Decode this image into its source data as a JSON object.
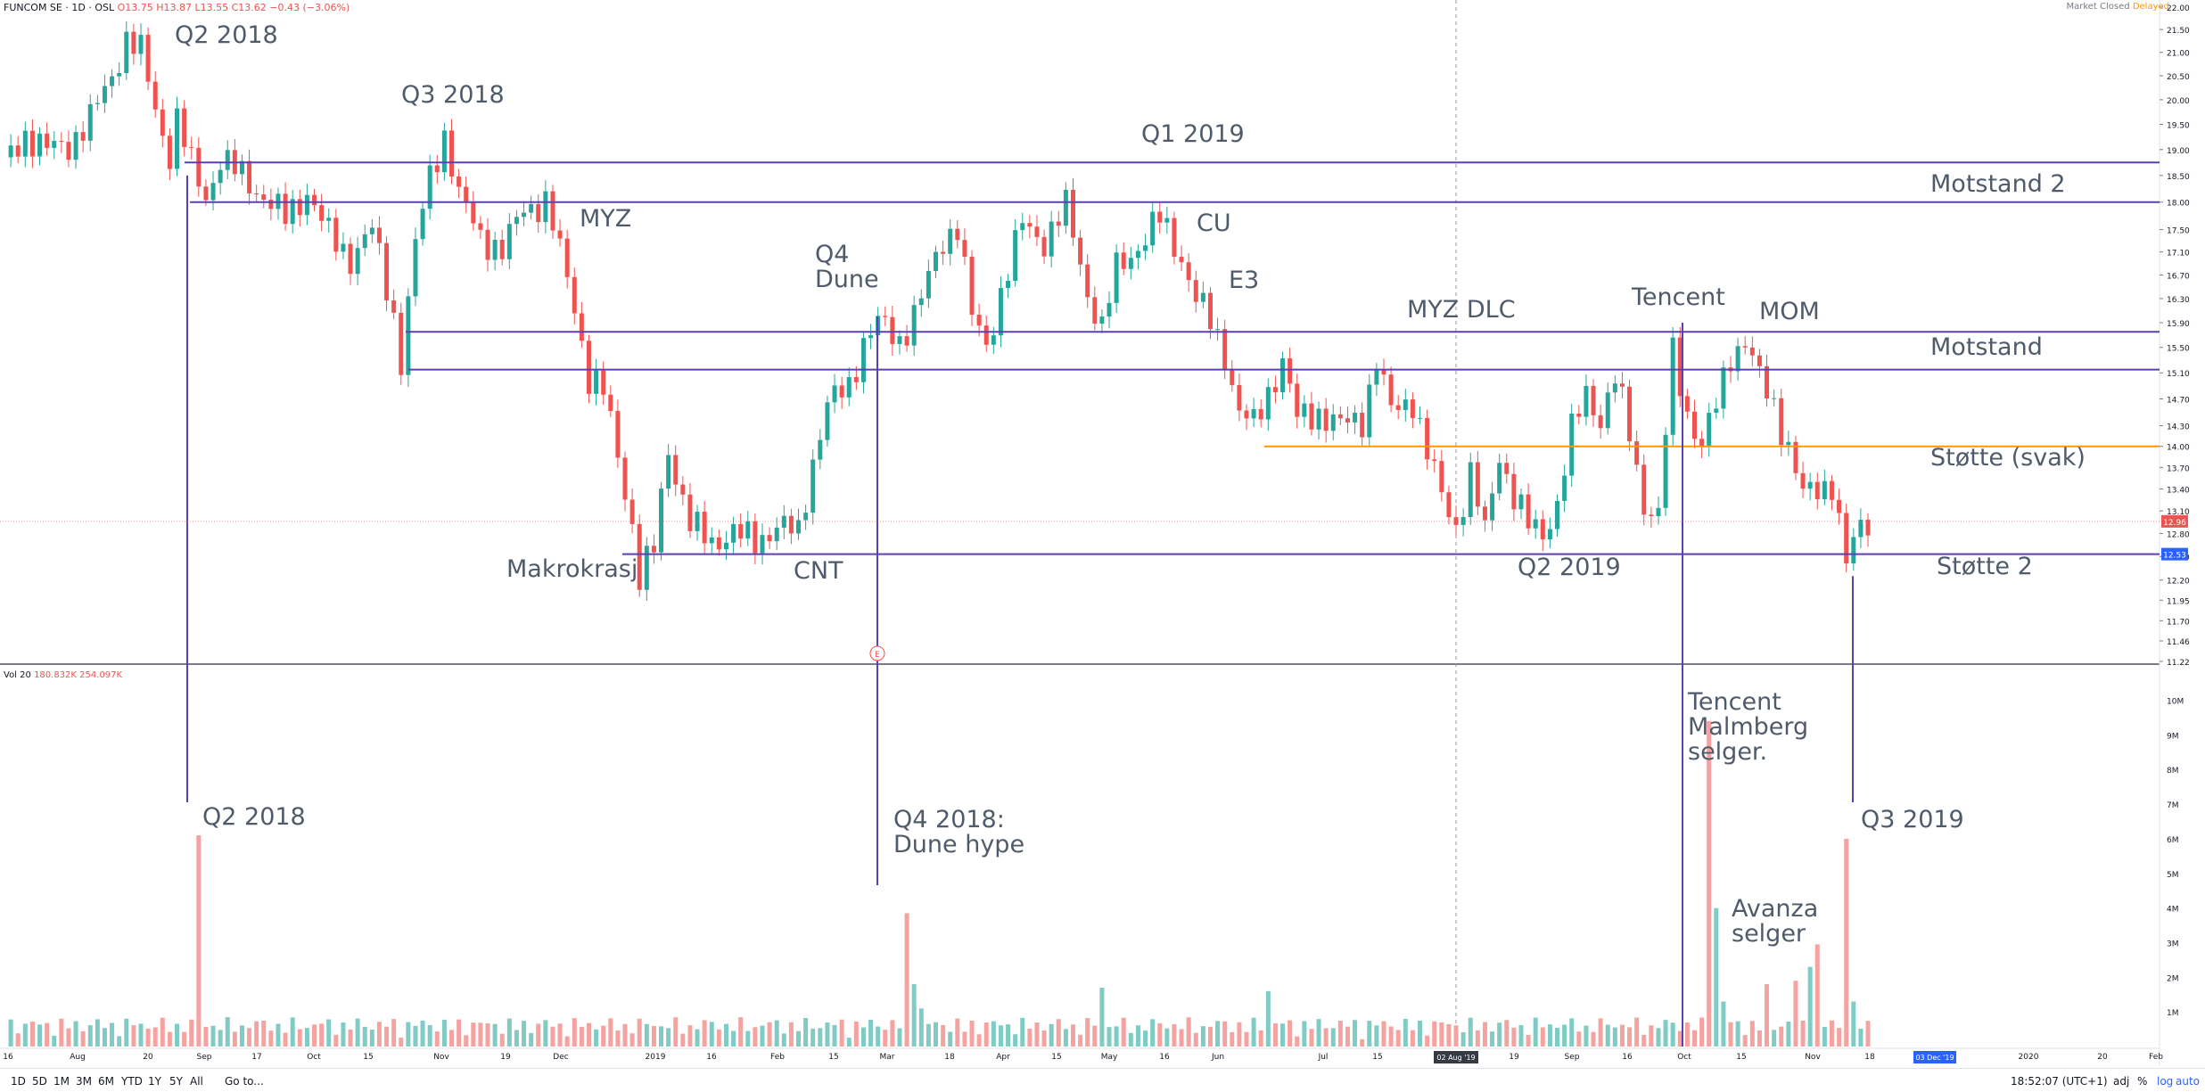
{
  "header": {
    "symbol": "FUNCOM SE · 1D · OSL",
    "ohlc": "O13.75 H13.87 L13.55 C13.62 −0.43 (−3.06%)",
    "status": "Market Closed",
    "delayed": "Delayed"
  },
  "volume_legend": {
    "label": "Vol 20",
    "v1": "180.832K",
    "v2": "254.097K"
  },
  "toolbar": {
    "ranges": [
      "1D",
      "5D",
      "1M",
      "3M",
      "6M",
      "YTD",
      "1Y",
      "5Y",
      "All"
    ],
    "goto": "Go to...",
    "time": "18:52:07 (UTC+1)",
    "adj": "adj",
    "pct": "%",
    "log": "log",
    "auto": "auto"
  },
  "price_axis": {
    "ticks": [
      "22.00",
      "21.50",
      "21.00",
      "20.50",
      "20.00",
      "19.50",
      "19.00",
      "18.50",
      "18.00",
      "17.50",
      "17.10",
      "16.70",
      "16.30",
      "15.90",
      "15.50",
      "15.10",
      "14.70",
      "14.30",
      "14.00",
      "13.70",
      "13.40",
      "13.10",
      "12.80",
      "12.50",
      "12.20",
      "11.95",
      "11.70",
      "11.46",
      "11.22"
    ],
    "last_price": "12.96",
    "support_label": "12.53"
  },
  "volume_axis": {
    "ticks": [
      "10M",
      "9M",
      "8M",
      "7M",
      "6M",
      "5M",
      "4M",
      "3M",
      "2M",
      "1M"
    ]
  },
  "time_axis": {
    "ticks": [
      "16",
      "Aug",
      "20",
      "Sep",
      "17",
      "Oct",
      "15",
      "Nov",
      "19",
      "Dec",
      "2019",
      "16",
      "Feb",
      "15",
      "Mar",
      "18",
      "Apr",
      "15",
      "May",
      "16",
      "Jun",
      "Jul",
      "15",
      "19",
      "Sep",
      "16",
      "Oct",
      "15",
      "Nov",
      "18",
      "2020",
      "20",
      "Feb"
    ],
    "crosshair_label": "02 Aug '19",
    "future_label": "03 Dec '19"
  },
  "annotations": {
    "q2_2018_top": "Q2 2018",
    "q3_2018": "Q3 2018",
    "q1_2019": "Q1 2019",
    "myz": "MYZ",
    "q4_dune": "Q4\nDune",
    "cu": "CU",
    "e3": "E3",
    "myz_dlc": "MYZ DLC",
    "tencent": "Tencent",
    "mom": "MOM",
    "motstand2": "Motstand 2",
    "motstand": "Motstand",
    "stotte_svak": "Støtte (svak)",
    "stotte2": "Støtte 2",
    "makrokrasj": "Makrokrasj",
    "cnt": "CNT",
    "q2_2019": "Q2 2019",
    "q2_2018_vol": "Q2 2018",
    "q4_2018_vol": "Q4 2018:\nDune hype",
    "tencent_vol": "Tencent\nMalmberg\nselger.",
    "avanza": "Avanza\nselger",
    "q3_2019_vol": "Q3 2019",
    "earnings_marker": "E"
  },
  "chart_data": {
    "type": "candlestick",
    "scale": "log",
    "ylim": [
      11.22,
      22.0
    ],
    "title": "",
    "xlabel": "",
    "ylabel": "",
    "horizontal_levels": [
      {
        "name": "Motstand 2 (upper)",
        "value": 18.75,
        "color": "#5b3fb5"
      },
      {
        "name": "Motstand 2",
        "value": 18.0,
        "color": "#5b3fb5"
      },
      {
        "name": "Motstand (upper)",
        "value": 15.75,
        "color": "#5b3fb5"
      },
      {
        "name": "Motstand",
        "value": 15.15,
        "color": "#5b3fb5"
      },
      {
        "name": "Støtte (svak)",
        "value": 14.0,
        "color": "#ff9800"
      },
      {
        "name": "Støtte 2",
        "value": 12.53,
        "color": "#5b3fb5"
      }
    ],
    "last_price": 12.96,
    "price_path": [
      [
        0,
        18.7
      ],
      [
        3,
        19.3
      ],
      [
        6,
        19.0
      ],
      [
        9,
        19.1
      ],
      [
        12,
        19.6
      ],
      [
        15,
        20.5
      ],
      [
        17,
        21.3
      ],
      [
        19,
        21.0
      ],
      [
        20,
        20.4
      ],
      [
        21,
        19.8
      ],
      [
        23,
        18.9
      ],
      [
        24,
        19.6
      ],
      [
        26,
        18.7
      ],
      [
        28,
        18.1
      ],
      [
        30,
        18.8
      ],
      [
        33,
        18.5
      ],
      [
        36,
        18.1
      ],
      [
        39,
        17.7
      ],
      [
        42,
        18.2
      ],
      [
        45,
        17.4
      ],
      [
        48,
        17.0
      ],
      [
        51,
        17.5
      ],
      [
        54,
        16.0
      ],
      [
        55,
        15.3
      ],
      [
        57,
        17.2
      ],
      [
        59,
        18.5
      ],
      [
        61,
        19.3
      ],
      [
        63,
        18.1
      ],
      [
        66,
        17.4
      ],
      [
        69,
        17.1
      ],
      [
        72,
        17.9
      ],
      [
        75,
        18.0
      ],
      [
        77,
        17.1
      ],
      [
        79,
        16.2
      ],
      [
        81,
        15.0
      ],
      [
        83,
        14.8
      ],
      [
        85,
        13.9
      ],
      [
        87,
        12.9
      ],
      [
        88,
        12.2
      ],
      [
        90,
        12.6
      ],
      [
        92,
        14.0
      ],
      [
        93,
        13.6
      ],
      [
        95,
        12.9
      ],
      [
        98,
        12.7
      ],
      [
        101,
        12.8
      ],
      [
        104,
        12.7
      ],
      [
        107,
        12.9
      ],
      [
        110,
        12.8
      ],
      [
        112,
        13.8
      ],
      [
        114,
        14.6
      ],
      [
        117,
        14.9
      ],
      [
        119,
        15.6
      ],
      [
        121,
        15.9
      ],
      [
        124,
        15.6
      ],
      [
        127,
        16.3
      ],
      [
        130,
        17.3
      ],
      [
        132,
        17.6
      ],
      [
        134,
        16.0
      ],
      [
        136,
        15.5
      ],
      [
        138,
        16.4
      ],
      [
        141,
        17.6
      ],
      [
        144,
        17.3
      ],
      [
        147,
        17.9
      ],
      [
        150,
        16.4
      ],
      [
        152,
        15.8
      ],
      [
        154,
        16.8
      ],
      [
        157,
        17.2
      ],
      [
        160,
        17.7
      ],
      [
        163,
        17.0
      ],
      [
        165,
        16.3
      ],
      [
        167,
        15.9
      ],
      [
        169,
        15.4
      ],
      [
        171,
        14.5
      ],
      [
        173,
        14.3
      ],
      [
        175,
        14.8
      ],
      [
        177,
        15.3
      ],
      [
        179,
        14.4
      ],
      [
        182,
        14.5
      ],
      [
        185,
        14.3
      ],
      [
        188,
        14.4
      ],
      [
        190,
        15.3
      ],
      [
        192,
        14.5
      ],
      [
        195,
        14.7
      ],
      [
        197,
        13.9
      ],
      [
        199,
        13.3
      ],
      [
        201,
        12.9
      ],
      [
        203,
        13.6
      ],
      [
        205,
        12.8
      ],
      [
        207,
        13.9
      ],
      [
        209,
        13.3
      ],
      [
        211,
        12.9
      ],
      [
        213,
        12.8
      ],
      [
        215,
        13.2
      ],
      [
        217,
        14.2
      ],
      [
        219,
        14.8
      ],
      [
        221,
        14.4
      ],
      [
        223,
        15.0
      ],
      [
        225,
        14.2
      ],
      [
        227,
        13.2
      ],
      [
        229,
        13.0
      ],
      [
        231,
        15.4
      ],
      [
        233,
        14.5
      ],
      [
        235,
        14.0
      ],
      [
        237,
        14.6
      ],
      [
        239,
        15.4
      ],
      [
        241,
        15.6
      ],
      [
        243,
        15.0
      ],
      [
        245,
        14.6
      ],
      [
        247,
        14.0
      ],
      [
        249,
        13.3
      ],
      [
        251,
        13.4
      ],
      [
        253,
        13.5
      ],
      [
        255,
        12.4
      ],
      [
        257,
        12.9
      ],
      [
        258,
        12.96
      ]
    ],
    "volume_note": "Daily volume bars; large spikes at Q2 2018 (~6.1M), Q4 2018 Dune hype (~3.9M), Tencent/Malmberg sale (~9.4M), Avanza selger (~3M), Q3 2019 (~6M)",
    "volume_spikes": [
      {
        "label": "Q2 2018",
        "value": 6100000
      },
      {
        "label": "Q4 2018: Dune hype",
        "value": 3850000
      },
      {
        "label": "Tencent Malmberg selger.",
        "value": 9400000
      },
      {
        "label": "Avanza selger",
        "value": 2950000
      },
      {
        "label": "Q3 2019",
        "value": 6000000
      }
    ],
    "colors": {
      "up": "#26a69a",
      "down": "#ef5350",
      "vol_up": "#80cbc4",
      "vol_down": "#f4a3a1",
      "level": "#5b3fb5",
      "weak_support": "#ff9800"
    }
  }
}
